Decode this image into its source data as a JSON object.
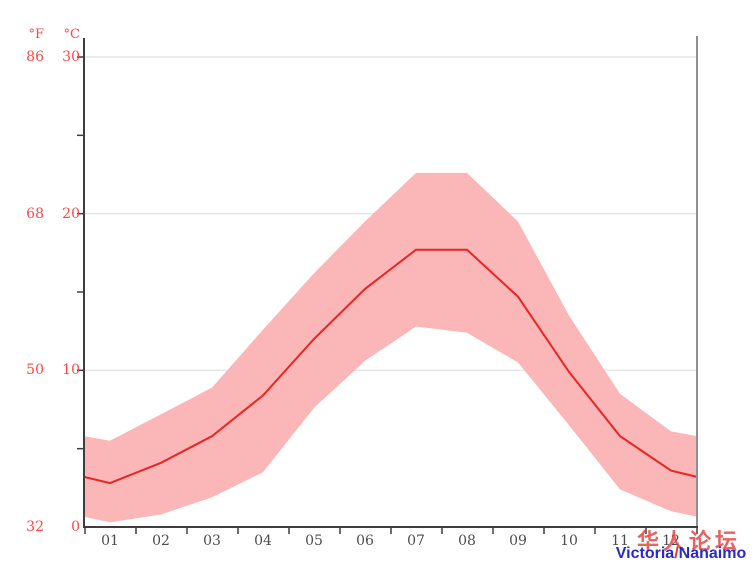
{
  "units": {
    "fahrenheit": "°F",
    "celsius": "°C"
  },
  "y_axis": {
    "celsius_ticks": [
      30,
      20,
      10,
      0
    ],
    "fahrenheit_ticks": [
      86,
      68,
      50,
      32
    ],
    "minor_tick_step_c": 5
  },
  "x_axis": {
    "months": [
      "01",
      "02",
      "03",
      "04",
      "05",
      "06",
      "07",
      "08",
      "09",
      "10",
      "11",
      "12"
    ]
  },
  "watermark": {
    "line1": "华人论坛",
    "line2_part1": "Victoria",
    "line2_slash": "/",
    "line2_part2": "Nanaimo"
  },
  "colors": {
    "average_line": "#ed2424",
    "band_fill": "#fbb7b7",
    "grid_line": "#e5e5e5",
    "left_axis": "#3d3d3d",
    "bottom_axis": "#3d3d3d",
    "right_axis": "#8f8f8f",
    "axis_label_red": "#fb4747",
    "month_label": "#4d4d4d",
    "watermark_blue": "#2a2acc",
    "watermark_red": "#e43e3e"
  },
  "chart_data": {
    "type": "line",
    "title": "",
    "xlabel": "",
    "ylabel": "",
    "categories": [
      "01",
      "02",
      "03",
      "04",
      "05",
      "06",
      "07",
      "08",
      "09",
      "10",
      "11",
      "12"
    ],
    "series": [
      {
        "name": "average_temperature_c",
        "values": [
          2.8,
          4.1,
          5.8,
          8.4,
          12.0,
          15.2,
          17.7,
          17.7,
          14.7,
          9.9,
          5.8,
          3.6
        ]
      },
      {
        "name": "max_temperature_c",
        "values": [
          5.5,
          7.2,
          8.9,
          12.6,
          16.2,
          19.5,
          22.6,
          22.6,
          19.5,
          13.5,
          8.5,
          6.1
        ]
      },
      {
        "name": "min_temperature_c",
        "values": [
          0.3,
          0.8,
          1.9,
          3.5,
          7.6,
          10.6,
          12.8,
          12.4,
          10.5,
          6.5,
          2.4,
          1.0
        ]
      }
    ],
    "band_between": [
      "min_temperature_c",
      "max_temperature_c"
    ],
    "ylim": [
      0,
      30
    ],
    "ylim_fahrenheit": [
      32,
      86
    ],
    "grid": true,
    "legend_position": "none",
    "edges_extend_with_dec_jan_mean": true
  }
}
